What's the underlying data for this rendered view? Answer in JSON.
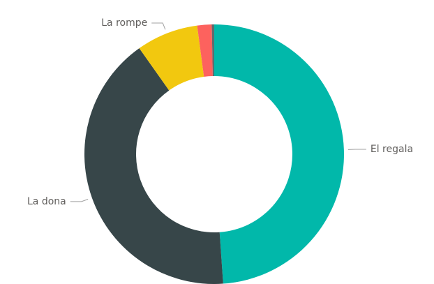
{
  "chart_data": {
    "type": "donut",
    "categories": [
      "El regala",
      "La dona",
      "La rompe",
      null,
      null
    ],
    "values": [
      48.9,
      41.3,
      7.7,
      1.8,
      0.3
    ],
    "colors": [
      "#01b8aa",
      "#374649",
      "#f2c80f",
      "#fd625e",
      "#5f6b6d"
    ]
  }
}
